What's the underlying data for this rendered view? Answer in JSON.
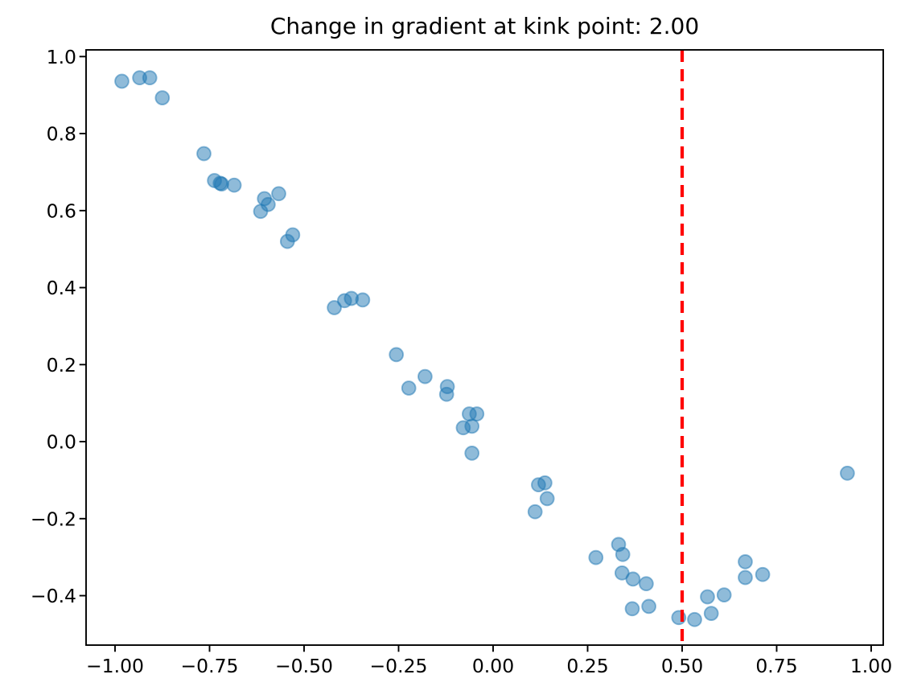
{
  "title": "Change in gradient at kink point: 2.00",
  "chart_data": {
    "type": "scatter",
    "title": "Change in gradient at kink point: 2.00",
    "xlabel": "",
    "ylabel": "",
    "grid": false,
    "legend": null,
    "xlim": [
      -1.0766,
      1.0319
    ],
    "ylim": [
      -0.5284,
      1.0174
    ],
    "x_ticks": [
      -1.0,
      -0.75,
      -0.5,
      -0.25,
      0.0,
      0.25,
      0.5,
      0.75,
      1.0
    ],
    "x_tick_labels": [
      "−1.00",
      "−0.75",
      "−0.50",
      "−0.25",
      "0.00",
      "0.25",
      "0.50",
      "0.75",
      "1.00"
    ],
    "y_ticks": [
      1.0,
      0.8,
      0.6,
      0.4,
      0.2,
      0.0,
      -0.2,
      -0.4
    ],
    "y_tick_labels": [
      "1.0",
      "0.8",
      "0.6",
      "0.4",
      "0.2",
      "0.0",
      "−0.2",
      "−0.4"
    ],
    "marker": {
      "shape": "circle",
      "color": "#1f77b4",
      "alpha": 0.5,
      "rendered_fill": "#8fbbda",
      "rendered_edge": "#5799c7"
    },
    "vline": {
      "x": 0.5,
      "color": "#ff0000",
      "style": "dashed",
      "meaning": "kink point"
    },
    "points": [
      [
        -0.982,
        0.936
      ],
      [
        -0.935,
        0.945
      ],
      [
        -0.908,
        0.945
      ],
      [
        -0.875,
        0.893
      ],
      [
        -0.765,
        0.748
      ],
      [
        -0.737,
        0.678
      ],
      [
        -0.722,
        0.671
      ],
      [
        -0.718,
        0.669
      ],
      [
        -0.685,
        0.666
      ],
      [
        -0.615,
        0.598
      ],
      [
        -0.605,
        0.631
      ],
      [
        -0.595,
        0.616
      ],
      [
        -0.567,
        0.644
      ],
      [
        -0.544,
        0.52
      ],
      [
        -0.53,
        0.537
      ],
      [
        -0.42,
        0.348
      ],
      [
        -0.393,
        0.366
      ],
      [
        -0.375,
        0.372
      ],
      [
        -0.345,
        0.368
      ],
      [
        -0.256,
        0.226
      ],
      [
        -0.223,
        0.139
      ],
      [
        -0.18,
        0.169
      ],
      [
        -0.123,
        0.123
      ],
      [
        -0.121,
        0.143
      ],
      [
        -0.079,
        0.036
      ],
      [
        -0.063,
        0.072
      ],
      [
        -0.056,
        0.04
      ],
      [
        -0.043,
        0.072
      ],
      [
        -0.056,
        -0.03
      ],
      [
        0.111,
        -0.182
      ],
      [
        0.12,
        -0.112
      ],
      [
        0.137,
        -0.107
      ],
      [
        0.143,
        -0.148
      ],
      [
        0.272,
        -0.301
      ],
      [
        0.332,
        -0.267
      ],
      [
        0.343,
        -0.293
      ],
      [
        0.341,
        -0.341
      ],
      [
        0.37,
        -0.357
      ],
      [
        0.405,
        -0.369
      ],
      [
        0.368,
        -0.434
      ],
      [
        0.412,
        -0.428
      ],
      [
        0.491,
        -0.457
      ],
      [
        0.533,
        -0.462
      ],
      [
        0.567,
        -0.403
      ],
      [
        0.577,
        -0.446
      ],
      [
        0.611,
        -0.398
      ],
      [
        0.667,
        -0.312
      ],
      [
        0.667,
        -0.353
      ],
      [
        0.713,
        -0.345
      ],
      [
        0.937,
        -0.082
      ]
    ]
  }
}
